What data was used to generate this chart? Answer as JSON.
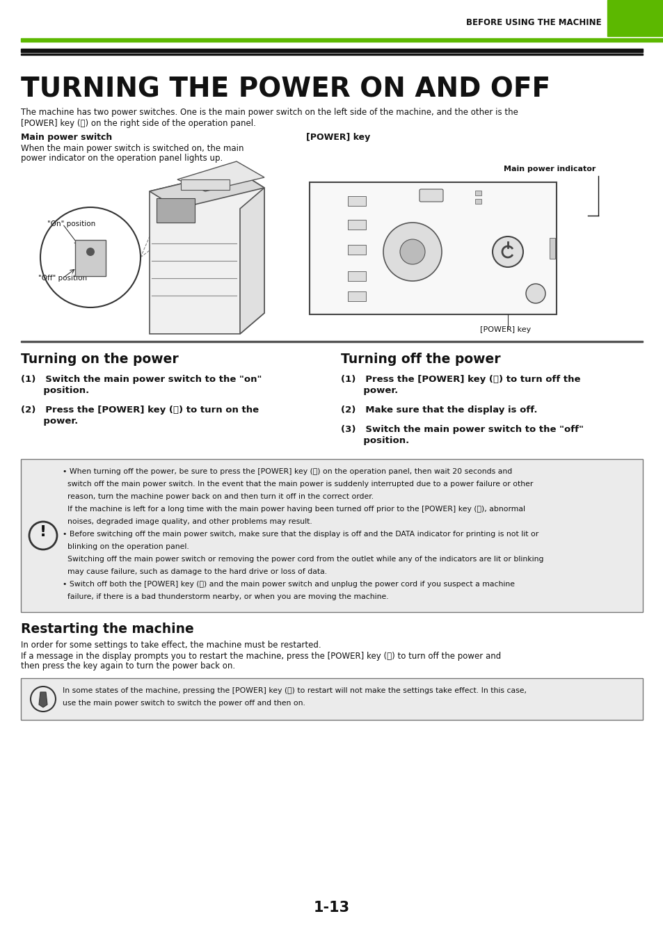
{
  "bg_color": "#ffffff",
  "green_color": "#5cb800",
  "dark_color": "#111111",
  "gray_bg": "#e8e8e8",
  "header_text": "BEFORE USING THE MACHINE",
  "title": "TURNING THE POWER ON AND OFF",
  "intro_line1": "The machine has two power switches. One is the main power switch on the left side of the machine, and the other is the",
  "intro_line2": "[POWER] key (ⓘ) on the right side of the operation panel.",
  "main_switch_label": "Main power switch",
  "power_key_label": "[POWER] key",
  "main_switch_desc1": "When the main power switch is switched on, the main",
  "main_switch_desc2": "power indicator on the operation panel lights up.",
  "main_power_indicator": "Main power indicator",
  "power_key_bottom": "[POWER] key",
  "on_position": "\"On\" position",
  "off_position": "\"Off\" position",
  "section1_title": "Turning on the power",
  "section1_step1a": "(1)   Switch the main power switch to the \"on\"",
  "section1_step1b": "       position.",
  "section1_step2a": "(2)   Press the [POWER] key (ⓘ) to turn on the",
  "section1_step2b": "       power.",
  "section2_title": "Turning off the power",
  "section2_step1a": "(1)   Press the [POWER] key (ⓘ) to turn off the",
  "section2_step1b": "       power.",
  "section2_step2": "(2)   Make sure that the display is off.",
  "section2_step3a": "(3)   Switch the main power switch to the \"off\"",
  "section2_step3b": "       position.",
  "warn_line1": "• When turning off the power, be sure to press the [POWER] key (ⓘ) on the operation panel, then wait 20 seconds and",
  "warn_line2": "  switch off the main power switch. In the event that the main power is suddenly interrupted due to a power failure or other",
  "warn_line3": "  reason, turn the machine power back on and then turn it off in the correct order.",
  "warn_line4": "  If the machine is left for a long time with the main power having been turned off prior to the [POWER] key (ⓘ), abnormal",
  "warn_line5": "  noises, degraded image quality, and other problems may result.",
  "warn_line6": "• Before switching off the main power switch, make sure that the display is off and the DATA indicator for printing is not lit or",
  "warn_line7": "  blinking on the operation panel.",
  "warn_line8": "  Switching off the main power switch or removing the power cord from the outlet while any of the indicators are lit or blinking",
  "warn_line9": "  may cause failure, such as damage to the hard drive or loss of data.",
  "warn_line10": "• Switch off both the [POWER] key (ⓘ) and the main power switch and unplug the power cord if you suspect a machine",
  "warn_line11": "  failure, if there is a bad thunderstorm nearby, or when you are moving the machine.",
  "section3_title": "Restarting the machine",
  "section3_line1": "In order for some settings to take effect, the machine must be restarted.",
  "section3_line2": "If a message in the display prompts you to restart the machine, press the [POWER] key (ⓘ) to turn off the power and",
  "section3_line3": "then press the key again to turn the power back on.",
  "note_line1": "In some states of the machine, pressing the [POWER] key (ⓘ) to restart will not make the settings take effect. In this case,",
  "note_line2": "use the main power switch to switch the power off and then on.",
  "page_number": "1-13"
}
